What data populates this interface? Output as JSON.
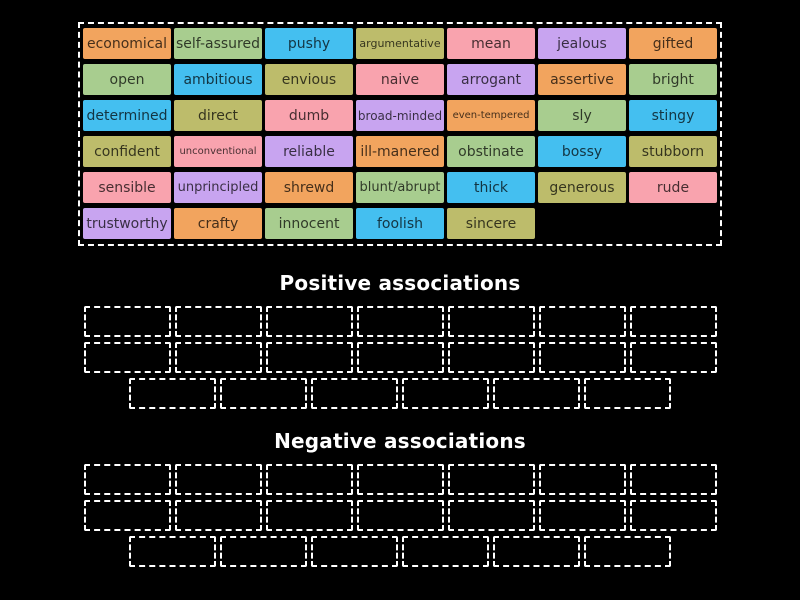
{
  "background": "#000000",
  "palette": {
    "orange": "#F2A45E",
    "green": "#A8CD8F",
    "blue": "#44BFF0",
    "olive": "#BDBC6B",
    "pink": "#F9A3AE",
    "purple": "#C8A4F0"
  },
  "board": {
    "tiles": [
      {
        "label": "economical",
        "color": "orange"
      },
      {
        "label": "self-assured",
        "color": "green"
      },
      {
        "label": "pushy",
        "color": "blue"
      },
      {
        "label": "argumentative",
        "color": "olive"
      },
      {
        "label": "mean",
        "color": "pink"
      },
      {
        "label": "jealous",
        "color": "purple"
      },
      {
        "label": "gifted",
        "color": "orange"
      },
      {
        "label": "open",
        "color": "green"
      },
      {
        "label": "ambitious",
        "color": "blue"
      },
      {
        "label": "envious",
        "color": "olive"
      },
      {
        "label": "naive",
        "color": "pink"
      },
      {
        "label": "arrogant",
        "color": "purple"
      },
      {
        "label": "assertive",
        "color": "orange"
      },
      {
        "label": "bright",
        "color": "green"
      },
      {
        "label": "determined",
        "color": "blue"
      },
      {
        "label": "direct",
        "color": "olive"
      },
      {
        "label": "dumb",
        "color": "pink"
      },
      {
        "label": "broad-minded",
        "color": "purple"
      },
      {
        "label": "even-tempered",
        "color": "orange"
      },
      {
        "label": "sly",
        "color": "green"
      },
      {
        "label": "stingy",
        "color": "blue"
      },
      {
        "label": "confident",
        "color": "olive"
      },
      {
        "label": "unconventional",
        "color": "pink"
      },
      {
        "label": "reliable",
        "color": "purple"
      },
      {
        "label": "ill-manered",
        "color": "orange"
      },
      {
        "label": "obstinate",
        "color": "green"
      },
      {
        "label": "bossy",
        "color": "blue"
      },
      {
        "label": "stubborn",
        "color": "olive"
      },
      {
        "label": "sensible",
        "color": "pink"
      },
      {
        "label": "unprincipled",
        "color": "purple"
      },
      {
        "label": "shrewd",
        "color": "orange"
      },
      {
        "label": "blunt/abrupt",
        "color": "green"
      },
      {
        "label": "thick",
        "color": "blue"
      },
      {
        "label": "generous",
        "color": "olive"
      },
      {
        "label": "rude",
        "color": "pink"
      },
      {
        "label": "trustworthy",
        "color": "purple"
      },
      {
        "label": "crafty",
        "color": "orange"
      },
      {
        "label": "innocent",
        "color": "green"
      },
      {
        "label": "foolish",
        "color": "blue"
      },
      {
        "label": "sincere",
        "color": "olive"
      }
    ]
  },
  "groups": [
    {
      "title": "Positive associations",
      "slot_rows": [
        7,
        7,
        6
      ]
    },
    {
      "title": "Negative associations",
      "slot_rows": [
        7,
        7,
        6
      ]
    }
  ]
}
